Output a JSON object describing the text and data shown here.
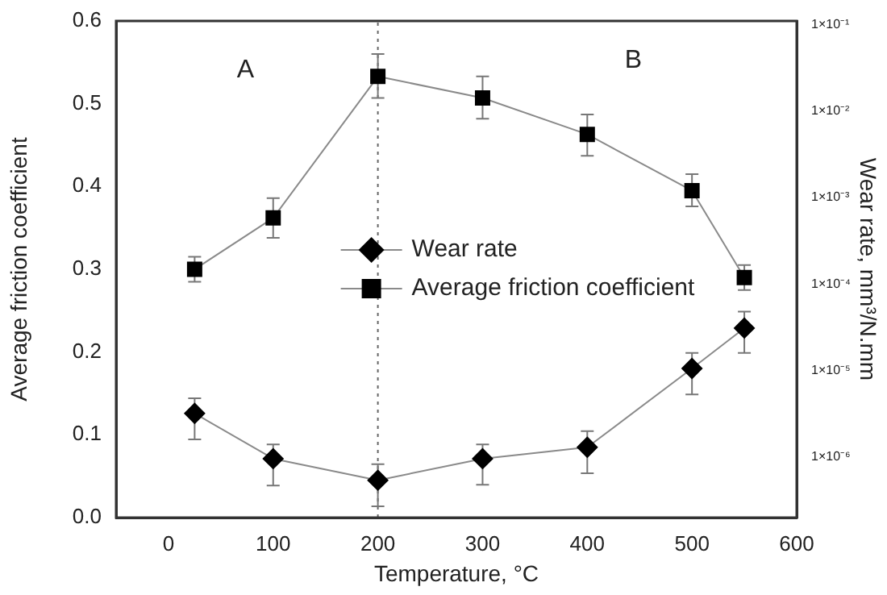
{
  "chart_data": {
    "type": "line",
    "xlabel": "Temperature, °C",
    "ylabel": "Average friction coefficient",
    "y2label": "Wear rate, mm³/N.mm",
    "x": [
      25,
      100,
      200,
      300,
      400,
      500,
      550
    ],
    "series": [
      {
        "name": "Wear rate",
        "color": "#000000",
        "marker": "diamond",
        "axis": "y2",
        "values": [
          3.2e-06,
          9.6e-07,
          5.4e-07,
          9.6e-07,
          1.3e-06,
          1.06e-05,
          3.1e-05
        ],
        "errors": [
          [
            1.6e-06,
            4.8e-06
          ],
          [
            4.7e-07,
            1.4e-06
          ],
          [
            2.7e-07,
            8.3e-07
          ],
          [
            4.8e-07,
            1.4e-06
          ],
          [
            6.5e-07,
            2e-06
          ],
          [
            5.3e-06,
            1.6e-05
          ],
          [
            1.6e-05,
            4.8e-05
          ]
        ]
      },
      {
        "name": "Average friction coefficient",
        "color": "#000000",
        "marker": "square",
        "values": [
          0.3,
          0.362,
          0.533,
          0.507,
          0.463,
          0.395,
          0.29
        ],
        "errors": [
          [
            0.285,
            0.315
          ],
          [
            0.338,
            0.386
          ],
          [
            0.507,
            0.56
          ],
          [
            0.482,
            0.533
          ],
          [
            0.437,
            0.487
          ],
          [
            0.376,
            0.415
          ],
          [
            0.275,
            0.305
          ]
        ]
      }
    ],
    "xlim": [
      -50,
      600
    ],
    "xticks": [
      0,
      100,
      200,
      300,
      400,
      500,
      600
    ],
    "ylim": [
      0,
      0.6
    ],
    "yticks": [
      {
        "value": 0,
        "label": "0.0"
      },
      {
        "value": 0.1,
        "label": "0.1"
      },
      {
        "value": 0.2,
        "label": "0.2"
      },
      {
        "value": 0.3,
        "label": "0.3"
      },
      {
        "value": 0.4,
        "label": "0.4"
      },
      {
        "value": 0.5,
        "label": "0.5"
      },
      {
        "value": 0.6,
        "label": "0.6"
      }
    ],
    "log": "y2",
    "y2lim": [
      2e-07,
      0.11
    ],
    "y2ticks": [
      {
        "value": 1e-06,
        "label": "1×10⁻⁶"
      },
      {
        "value": 1e-05,
        "label": "1×10⁻⁵"
      },
      {
        "value": 0.0001,
        "label": "1×10⁻⁴"
      },
      {
        "value": 0.001,
        "label": "1×10⁻³"
      },
      {
        "value": 0.01,
        "label": "1×10⁻²"
      },
      {
        "value": 0.1,
        "label": "1×10⁻¹"
      }
    ],
    "ref_lines": [
      {
        "axis": "x",
        "value": 200,
        "line_style": "dotted"
      }
    ],
    "annotations": [
      "A",
      "B"
    ],
    "grid": false,
    "legend": "center",
    "line_style": "solid"
  }
}
